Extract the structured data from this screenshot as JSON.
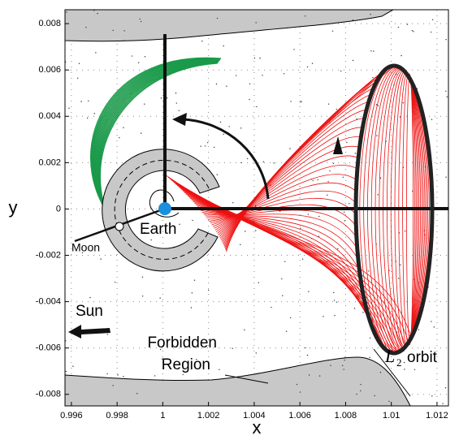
{
  "chart_data": {
    "type": "orbit-diagram",
    "xlabel": "x",
    "ylabel": "y",
    "xlim": [
      0.99572,
      1.0125
    ],
    "ylim": [
      -0.0085,
      0.0086
    ],
    "xticks": [
      0.996,
      0.998,
      1,
      1.002,
      1.004,
      1.006,
      1.008,
      1.01,
      1.012
    ],
    "yticks": [
      -0.008,
      -0.006,
      -0.004,
      -0.002,
      0,
      0.002,
      0.004,
      0.006,
      0.008
    ],
    "grid": true,
    "annotations": {
      "earth": "Earth",
      "moon": "Moon",
      "sun": "Sun",
      "forbidden_1": "Forbidden",
      "forbidden_2": "Region",
      "orbit_main": "L",
      "orbit_sub": "2",
      "orbit_rest": "orbit"
    }
  }
}
